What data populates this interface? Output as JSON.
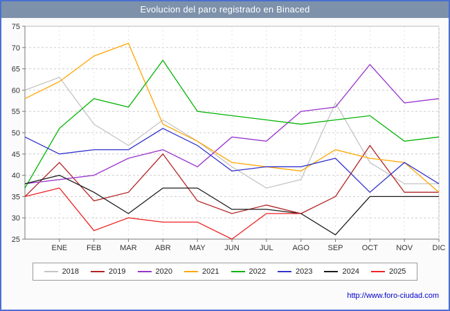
{
  "title": "Evolucion del paro registrado en Binaced",
  "footer": {
    "url": "http://www.foro-ciudad.com"
  },
  "colors": {
    "frame_border": "#4a6fd0",
    "title_bar_bg": "#7d91ab",
    "plot_bg": "#ffffff",
    "gridline": "#cccccc",
    "axis": "#777777"
  },
  "chart_data": {
    "type": "line",
    "title": "Evolucion del paro registrado en Binaced",
    "x_labels": [
      "ENE",
      "FEB",
      "MAR",
      "ABR",
      "MAY",
      "JUN",
      "JUL",
      "AGO",
      "SEP",
      "OCT",
      "NOV",
      "DIC"
    ],
    "xlabel": "",
    "ylabel": "",
    "ylim": [
      25,
      75
    ],
    "y_ticks": [
      25,
      30,
      35,
      40,
      45,
      50,
      55,
      60,
      65,
      70,
      75
    ],
    "grid": true,
    "legend_position": "bottom",
    "series_note": "start = value drawn on the left axis just before ENE; 2025 has no data after AGO",
    "series": [
      {
        "name": "2018",
        "color": "#c4c4c4",
        "start": 60,
        "values": [
          63,
          52,
          47,
          53,
          48,
          42,
          37,
          39,
          57,
          43,
          38,
          38
        ]
      },
      {
        "name": "2019",
        "color": "#b22222",
        "start": 35,
        "values": [
          43,
          34,
          36,
          45,
          34,
          31,
          33,
          31,
          35,
          47,
          36,
          36
        ]
      },
      {
        "name": "2020",
        "color": "#9932cc",
        "start": 38,
        "values": [
          39,
          40,
          44,
          46,
          42,
          49,
          48,
          55,
          56,
          66,
          57,
          58
        ]
      },
      {
        "name": "2021",
        "color": "#ffa500",
        "start": 58,
        "values": [
          62,
          68,
          71,
          52,
          48,
          43,
          42,
          41,
          46,
          44,
          43,
          36
        ]
      },
      {
        "name": "2022",
        "color": "#00b300",
        "start": 37,
        "values": [
          51,
          58,
          56,
          67,
          55,
          54,
          53,
          52,
          53,
          54,
          48,
          49
        ]
      },
      {
        "name": "2023",
        "color": "#3333cc",
        "start": 49,
        "values": [
          45,
          46,
          46,
          51,
          47,
          41,
          42,
          42,
          44,
          36,
          43,
          38
        ]
      },
      {
        "name": "2024",
        "color": "#1a1a1a",
        "start": 38,
        "values": [
          40,
          36,
          31,
          37,
          37,
          32,
          32,
          31,
          26,
          35,
          35,
          35
        ]
      },
      {
        "name": "2025",
        "color": "#ee2222",
        "start": 35,
        "values": [
          37,
          27,
          30,
          29,
          29,
          25,
          31,
          31,
          null,
          null,
          null,
          null
        ]
      }
    ]
  }
}
